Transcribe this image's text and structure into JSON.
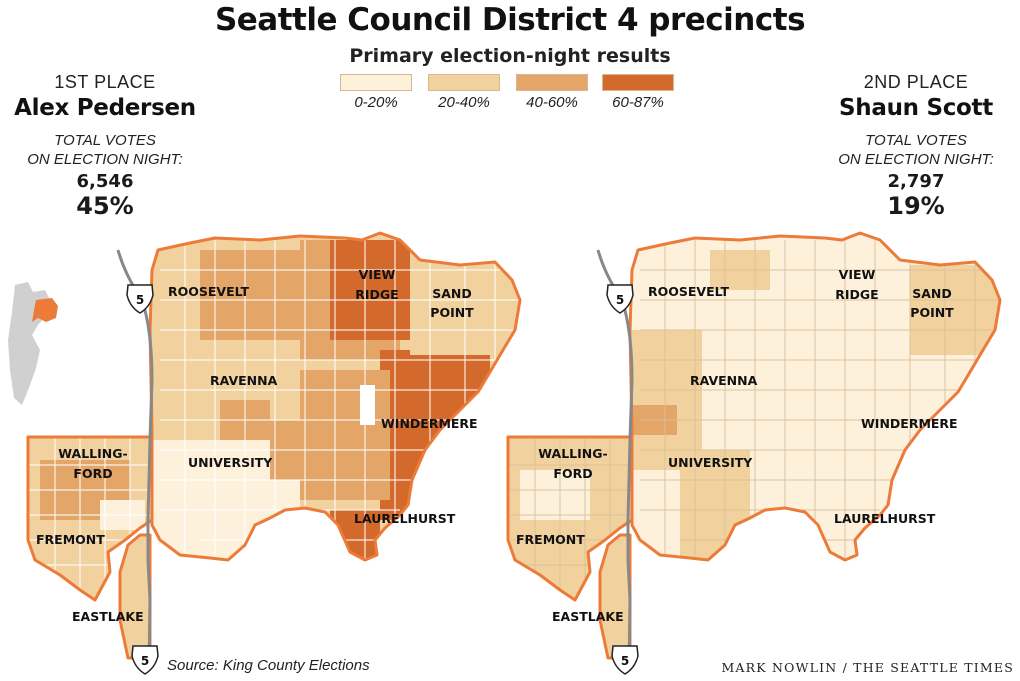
{
  "title": "Seattle Council District 4 precincts",
  "subtitle": "Primary election-night results",
  "legend": [
    {
      "label": "0-20%",
      "color": "#fdf1dc"
    },
    {
      "label": "20-40%",
      "color": "#f1d29f"
    },
    {
      "label": "40-60%",
      "color": "#e4a568"
    },
    {
      "label": "60-87%",
      "color": "#d4692c"
    }
  ],
  "outline_color": "#ec7b3a",
  "candidates": [
    {
      "place": "1ST PLACE",
      "name": "Alex Pedersen",
      "total_votes_label_1": "TOTAL VOTES",
      "total_votes_label_2": "ON ELECTION NIGHT:",
      "votes": "6,546",
      "pct": "45%"
    },
    {
      "place": "2ND PLACE",
      "name": "Shaun Scott",
      "total_votes_label_1": "TOTAL VOTES",
      "total_votes_label_2": "ON ELECTION NIGHT:",
      "votes": "2,797",
      "pct": "19%"
    }
  ],
  "neighborhoods": {
    "roosevelt": "ROOSEVELT",
    "view_ridge_1": "VIEW",
    "view_ridge_2": "RIDGE",
    "sand_point_1": "SAND",
    "sand_point_2": "POINT",
    "ravenna": "RAVENNA",
    "windermere": "WINDERMERE",
    "wallingford_1": "WALLING-",
    "wallingford_2": "FORD",
    "university": "UNIVERSITY",
    "fremont": "FREMONT",
    "laurelhurst": "LAURELHURST",
    "eastlake": "EASTLAKE"
  },
  "highway": "5",
  "source": "Source: King County Elections",
  "credit": "MARK NOWLIN / THE SEATTLE TIMES"
}
